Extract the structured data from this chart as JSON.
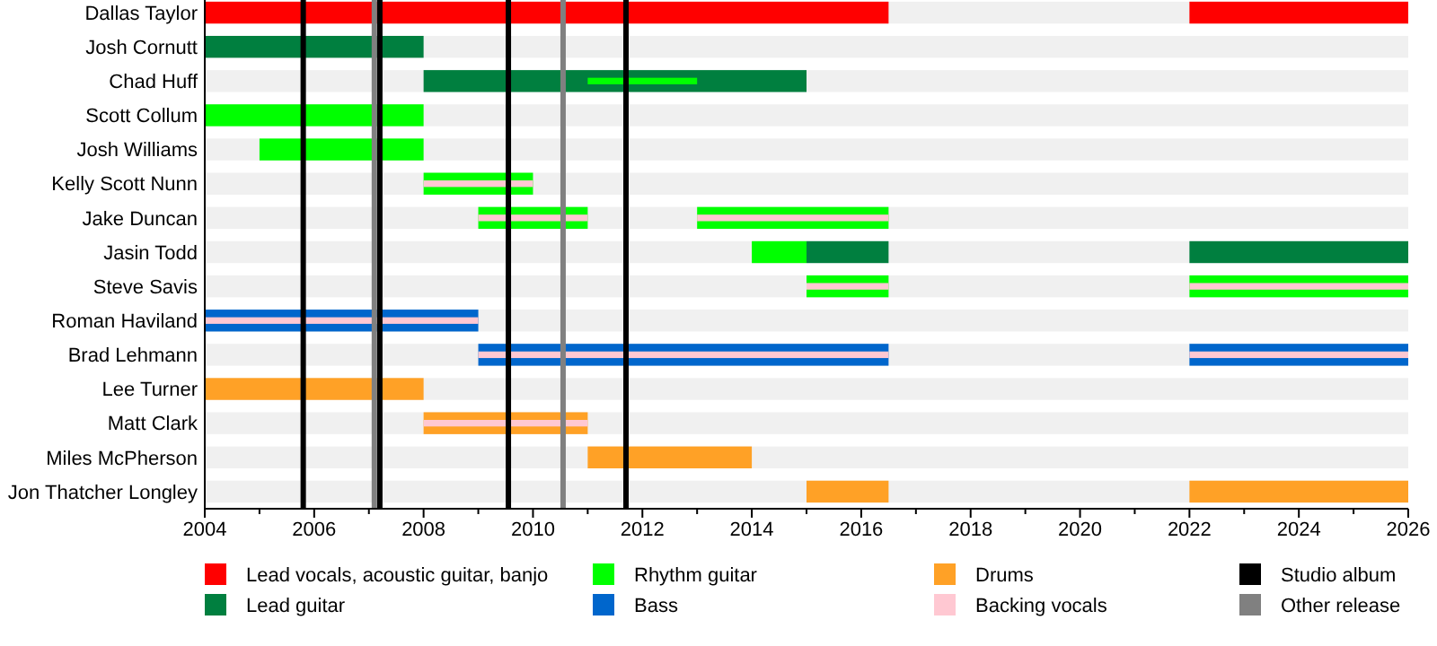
{
  "chart_data": {
    "type": "bar",
    "orientation": "horizontal",
    "categories": [
      "Dallas Taylor",
      "Josh Cornutt",
      "Chad Huff",
      "Scott Collum",
      "Josh Williams",
      "Kelly Scott Nunn",
      "Jake Duncan",
      "Jasin Todd",
      "Steve Savis",
      "Roman Haviland",
      "Brad Lehmann",
      "Lee Turner",
      "Matt Clark",
      "Miles McPherson",
      "Jon Thatcher Longley"
    ],
    "series": [
      {
        "name": "Lead vocals, acoustic guitar, banjo",
        "color": "#ff0000",
        "base": [
          2004,
          null,
          null,
          null,
          null,
          null,
          null,
          null,
          null,
          null,
          null,
          null,
          null,
          null,
          null
        ],
        "values": [
          12.5,
          null,
          null,
          null,
          null,
          null,
          null,
          null,
          null,
          null,
          null,
          null,
          null,
          null,
          null
        ]
      },
      {
        "color": "#ff0000",
        "base": [
          2022,
          null,
          null,
          null,
          null,
          null,
          null,
          null,
          null,
          null,
          null,
          null,
          null,
          null,
          null
        ],
        "values": [
          4,
          null,
          null,
          null,
          null,
          null,
          null,
          null,
          null,
          null,
          null,
          null,
          null,
          null,
          null
        ]
      },
      {
        "name": "Lead guitar",
        "color": "#007f3f",
        "base": [
          null,
          2004,
          2008,
          null,
          null,
          null,
          null,
          2015,
          null,
          null,
          null,
          null,
          null,
          null,
          null
        ],
        "values": [
          null,
          4,
          7,
          null,
          null,
          null,
          null,
          1.5,
          null,
          null,
          null,
          null,
          null,
          null,
          null
        ]
      },
      {
        "color": "#007f3f",
        "base": [
          null,
          null,
          null,
          null,
          null,
          null,
          null,
          2022,
          null,
          null,
          null,
          null,
          null,
          null,
          null
        ],
        "values": [
          null,
          null,
          null,
          null,
          null,
          null,
          null,
          4,
          null,
          null,
          null,
          null,
          null,
          null,
          null
        ]
      },
      {
        "name": "Rhythm guitar",
        "color": "#00ff00",
        "base": [
          null,
          null,
          null,
          2004,
          2005,
          2008,
          2009,
          2014,
          2015,
          null,
          null,
          null,
          null,
          null,
          null
        ],
        "values": [
          null,
          null,
          null,
          4,
          3,
          2,
          2,
          1,
          1.5,
          null,
          null,
          null,
          null,
          null,
          null
        ]
      },
      {
        "color": "#00ff00",
        "base": [
          null,
          null,
          2011,
          null,
          null,
          null,
          2013,
          null,
          2022,
          null,
          null,
          null,
          null,
          null,
          null
        ],
        "values": [
          null,
          null,
          2,
          null,
          null,
          null,
          3.5,
          null,
          4,
          null,
          null,
          null,
          null,
          null,
          null
        ]
      },
      {
        "name": "Bass",
        "color": "#0066cc",
        "base": [
          null,
          null,
          null,
          null,
          null,
          null,
          null,
          null,
          null,
          2004,
          2009,
          null,
          null,
          null,
          null
        ],
        "values": [
          null,
          null,
          null,
          null,
          null,
          null,
          null,
          null,
          null,
          5,
          7.5,
          null,
          null,
          null,
          null
        ]
      },
      {
        "color": "#0066cc",
        "base": [
          null,
          null,
          null,
          null,
          null,
          null,
          null,
          null,
          null,
          null,
          2022,
          null,
          null,
          null,
          null
        ],
        "values": [
          null,
          null,
          null,
          null,
          null,
          null,
          null,
          null,
          null,
          null,
          4,
          null,
          null,
          null,
          null
        ]
      },
      {
        "name": "Drums",
        "color": "#ffa126",
        "base": [
          null,
          null,
          null,
          null,
          null,
          null,
          null,
          null,
          null,
          null,
          null,
          2004,
          2008,
          2011,
          2015
        ],
        "values": [
          null,
          null,
          null,
          null,
          null,
          null,
          null,
          null,
          null,
          null,
          null,
          4,
          3,
          3,
          1.5
        ]
      },
      {
        "color": "#ffa126",
        "base": [
          null,
          null,
          null,
          null,
          null,
          null,
          null,
          null,
          null,
          null,
          null,
          null,
          null,
          null,
          2022
        ],
        "values": [
          null,
          null,
          null,
          null,
          null,
          null,
          null,
          null,
          null,
          null,
          null,
          null,
          null,
          null,
          4
        ]
      },
      {
        "name": "Backing vocals",
        "color": "#ffc8d2",
        "base": [
          null,
          null,
          null,
          null,
          null,
          2008,
          2009,
          null,
          2015,
          2004,
          2009,
          null,
          2008,
          null,
          null
        ],
        "values": [
          null,
          null,
          null,
          null,
          null,
          2,
          2,
          null,
          1.5,
          5,
          7.5,
          null,
          3,
          null,
          null
        ]
      },
      {
        "color": "#ffc8d2",
        "base": [
          null,
          null,
          null,
          null,
          null,
          null,
          2013,
          null,
          2022,
          null,
          2022,
          null,
          null,
          null,
          null
        ],
        "values": [
          null,
          null,
          null,
          null,
          null,
          null,
          3.5,
          null,
          4,
          null,
          4,
          null,
          null,
          null,
          null
        ]
      }
    ],
    "xlim": [
      2004,
      2026
    ],
    "xticks": [
      2004,
      {
        "value": 2005,
        "label": null
      },
      2006,
      {
        "value": 2007,
        "label": null
      },
      2008,
      {
        "value": 2009,
        "label": null
      },
      2010,
      {
        "value": 2011,
        "label": null
      },
      2012,
      {
        "value": 2013,
        "label": null
      },
      2014,
      {
        "value": 2015,
        "label": null
      },
      2016,
      {
        "value": 2017,
        "label": null
      },
      2018,
      {
        "value": 2019,
        "label": null
      },
      2020,
      {
        "value": 2021,
        "label": null
      },
      2022,
      {
        "value": 2023,
        "label": null
      },
      2024,
      {
        "value": 2025,
        "label": null
      },
      2026
    ],
    "ref_lines": [
      {
        "axis": "x",
        "value": 2005.8,
        "label": "Studio album",
        "color": "#000000"
      },
      {
        "axis": "x",
        "value": 2007.2,
        "color": "#000000"
      },
      {
        "axis": "x",
        "value": 2009.55,
        "color": "#000000"
      },
      {
        "axis": "x",
        "value": 2011.7,
        "color": "#000000"
      },
      {
        "axis": "x",
        "value": 2007.1,
        "label": "Other release",
        "color": "#808080"
      },
      {
        "axis": "x",
        "value": 2010.55,
        "color": "#808080"
      }
    ],
    "legend": "bottom"
  }
}
